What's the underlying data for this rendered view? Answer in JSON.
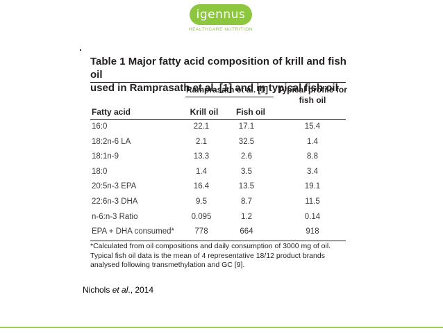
{
  "logo": {
    "name": "igennus",
    "tagline": "HEALTHCARE NUTRITION",
    "color": "#8dc63f"
  },
  "table": {
    "title_line1": "Table 1 Major fatty acid composition of krill and fish oil",
    "title_line2": "used in Ramprasath et al. [1] and in typical fish oil",
    "group_header": "Ramprasath et al. [1]",
    "typical_header_line1": "Typical profile for",
    "typical_header_line2": "fish oil",
    "col_fatty_acid": "Fatty acid",
    "col_krill": "Krill oil",
    "col_fish": "Fish oil",
    "rows": [
      {
        "acid": "16:0",
        "krill": "22.1",
        "fish": "17.1",
        "typical": "15.4"
      },
      {
        "acid": "18:2n-6 LA",
        "krill": "2.1",
        "fish": "32.5",
        "typical": "1.4"
      },
      {
        "acid": "18:1n-9",
        "krill": "13.3",
        "fish": "2.6",
        "typical": "8.8"
      },
      {
        "acid": "18:0",
        "krill": "1.4",
        "fish": "3.5",
        "typical": "3.4"
      },
      {
        "acid": "20:5n-3 EPA",
        "krill": "16.4",
        "fish": "13.5",
        "typical": "19.1"
      },
      {
        "acid": "22:6n-3 DHA",
        "krill": "9.5",
        "fish": "8.7",
        "typical": "11.5"
      },
      {
        "acid": "n-6:n-3 Ratio",
        "krill": "0.095",
        "fish": "1.2",
        "typical": "0.14"
      },
      {
        "acid": "EPA + DHA consumed*",
        "krill": "778",
        "fish": "664",
        "typical": "918"
      }
    ],
    "footnote_line1": "*Calculated from oil compositions and daily consumption of 3000 mg of oil.",
    "footnote_line2": "Typical fish oil data is the mean of 4 representative 18/12 product brands",
    "footnote_line3": "analysed following transmethylation and GC [9]."
  },
  "citation": {
    "author": "Nichols ",
    "etal": "et al",
    "rest": "., 2014"
  },
  "accent_line_color": "#9bd04f"
}
